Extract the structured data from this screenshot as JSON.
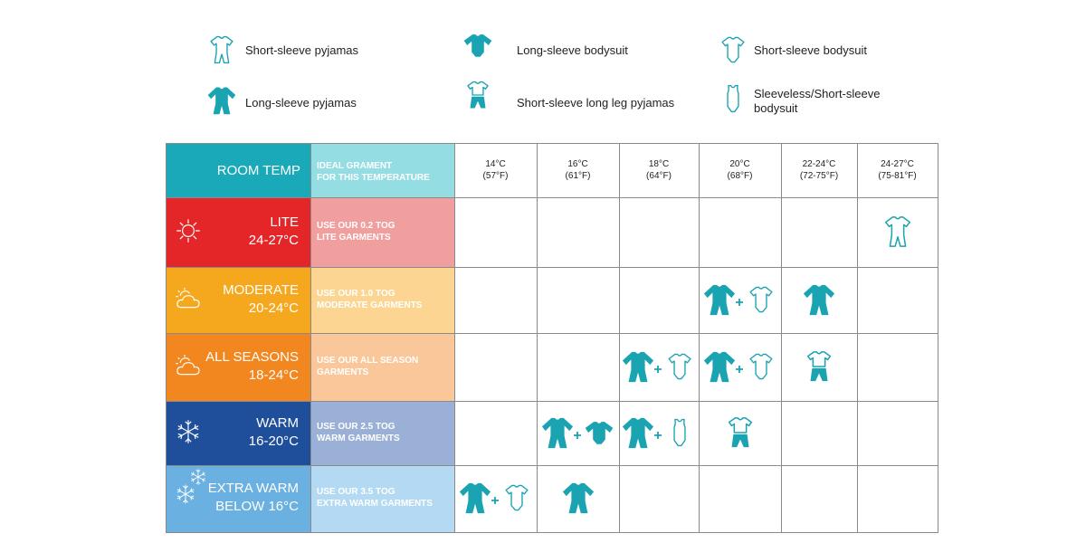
{
  "legend": [
    "Short-sleeve pyjamas",
    "Long-sleeve bodysuit",
    "Short-sleeve bodysuit",
    "Long-sleeve pyjamas",
    "Short-sleeve long leg pyjamas",
    "Sleeveless/Short-sleeve bodysuit"
  ],
  "table": {
    "header": {
      "room_temp": "ROOM TEMP",
      "ideal": [
        "IDEAL GRAMENT",
        "FOR THIS TEMPERATURE"
      ],
      "temperatures": [
        {
          "celsius": "14°C",
          "fahrenheit": "(57°F)"
        },
        {
          "celsius": "16°C",
          "fahrenheit": "(61°F)"
        },
        {
          "celsius": "18°C",
          "fahrenheit": "(64°F)"
        },
        {
          "celsius": "20°C",
          "fahrenheit": "(68°F)"
        },
        {
          "celsius": "22-24°C",
          "fahrenheit": "(72-75°F)"
        },
        {
          "celsius": "24-27°C",
          "fahrenheit": "(75-81°F)"
        }
      ]
    },
    "rows": [
      {
        "name": "LITE",
        "range": "24-27°C",
        "note": [
          "USE OUR 0.2 TOG",
          "LITE GARMENTS"
        ]
      },
      {
        "name": "MODERATE",
        "range": "20-24°C",
        "note": [
          "USE OUR 1.0 TOG",
          "MODERATE GARMENTS"
        ]
      },
      {
        "name": "ALL SEASONS",
        "range": "18-24°C",
        "note": [
          "USE OUR  ALL SEASON",
          "GARMENTS"
        ]
      },
      {
        "name": "WARM",
        "range": "16-20°C",
        "note": [
          "USE OUR 2.5 TOG",
          "WARM GARMENTS"
        ]
      },
      {
        "name": "EXTRA WARM",
        "range": "BELOW 16°C",
        "note": [
          "USE OUR 3.5 TOG",
          "EXTRA WARM GARMENTS"
        ]
      }
    ]
  }
}
